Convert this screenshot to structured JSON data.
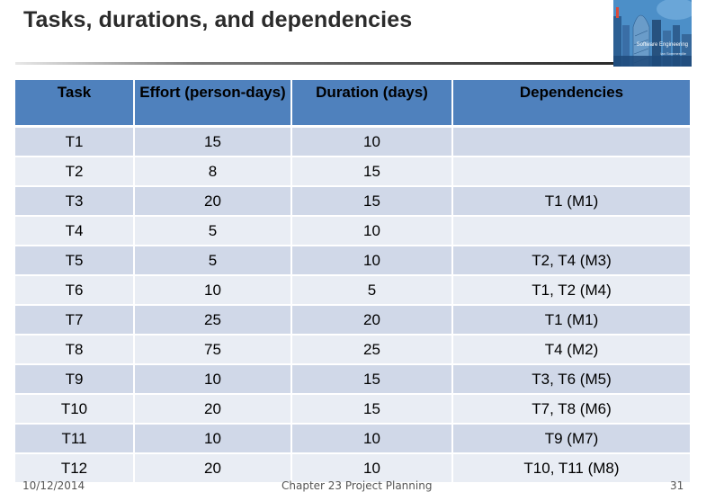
{
  "slide": {
    "title": "Tasks, durations, and dependencies"
  },
  "book_cover": {
    "title": "Software Engineering",
    "author": "Ian Sommerville"
  },
  "table": {
    "headers": [
      "Task",
      "Effort (person-days)",
      "Duration (days)",
      "Dependencies"
    ],
    "rows": [
      [
        "T1",
        "15",
        "10",
        ""
      ],
      [
        "T2",
        "8",
        "15",
        ""
      ],
      [
        "T3",
        "20",
        "15",
        "T1 (M1)"
      ],
      [
        "T4",
        "5",
        "10",
        ""
      ],
      [
        "T5",
        "5",
        "10",
        "T2, T4 (M3)"
      ],
      [
        "T6",
        "10",
        "5",
        "T1, T2 (M4)"
      ],
      [
        "T7",
        "25",
        "20",
        "T1 (M1)"
      ],
      [
        "T8",
        "75",
        "25",
        "T4 (M2)"
      ],
      [
        "T9",
        "10",
        "15",
        "T3, T6 (M5)"
      ],
      [
        "T10",
        "20",
        "15",
        "T7, T8 (M6)"
      ],
      [
        "T11",
        "10",
        "10",
        "T9 (M7)"
      ],
      [
        "T12",
        "20",
        "10",
        "T10, T11 (M8)"
      ]
    ]
  },
  "footer": {
    "date": "10/12/2014",
    "chapter": "Chapter 23 Project Planning",
    "page": "31"
  }
}
